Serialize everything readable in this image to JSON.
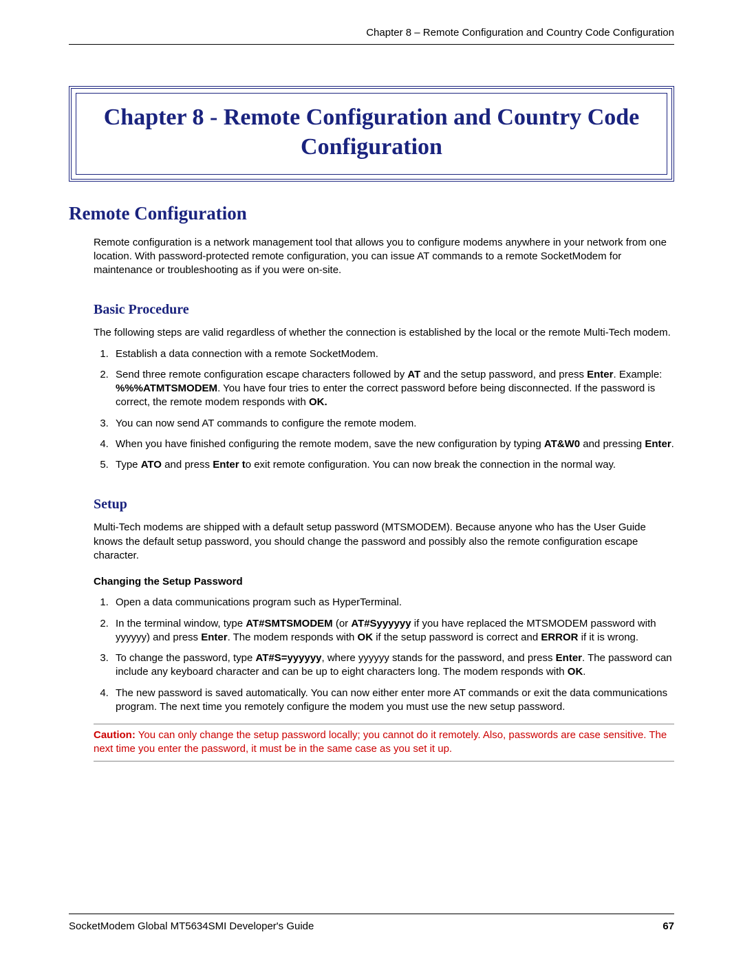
{
  "colors": {
    "heading_blue": "#1a237e",
    "caution_red": "#cc0000",
    "text_black": "#000000",
    "rule_gray": "#888888",
    "background": "#ffffff"
  },
  "typography": {
    "heading_font": "Georgia, 'Times New Roman', serif",
    "body_font": "Arial, Helvetica, sans-serif",
    "chapter_title_size_pt": 34,
    "h2_size_pt": 27,
    "h3_size_pt": 20,
    "body_size_pt": 15
  },
  "header": {
    "running_title": "Chapter 8 – Remote Configuration and Country Code Configuration"
  },
  "chapter": {
    "title": "Chapter 8 - Remote Configuration and Country Code Configuration"
  },
  "section1": {
    "title": "Remote Configuration",
    "intro": "Remote configuration is a network management tool that allows you to configure modems anywhere in your network from one location. With password-protected remote configuration, you can issue AT commands to a remote SocketModem for maintenance or troubleshooting as if you were on-site."
  },
  "basic_procedure": {
    "title": "Basic Procedure",
    "intro": "The following steps are valid regardless of whether the connection is established by the local or the remote Multi-Tech modem.",
    "steps": {
      "s1": "Establish a data connection with a remote SocketModem.",
      "s2_a": "Send three remote configuration escape characters followed by ",
      "s2_AT": "AT",
      "s2_b": " and the setup password, and press ",
      "s2_Enter": "Enter",
      "s2_c": ". Example: ",
      "s2_example": "%%%ATMTSMODEM",
      "s2_d": ". You have four tries to enter the correct password before being disconnected. If the password is correct, the remote modem responds with ",
      "s2_OK": "OK.",
      "s3": "You can now send AT commands to configure the remote modem.",
      "s4_a": "When you have finished configuring the remote modem, save the new configuration by typing ",
      "s4_cmd": "AT&W0",
      "s4_b": " and pressing ",
      "s4_Enter": "Enter",
      "s4_c": ".",
      "s5_a": "Type ",
      "s5_ATO": "ATO",
      "s5_b": " and press ",
      "s5_Enter": "Enter t",
      "s5_c": "o exit remote configuration. You can now break the connection in the normal way."
    }
  },
  "setup": {
    "title": "Setup",
    "intro": "Multi-Tech modems are shipped with a default setup password (MTSMODEM). Because anyone who has the User Guide knows the default setup password, you should change the password and possibly also the remote configuration escape character.",
    "change_pw_heading": "Changing the Setup Password",
    "steps": {
      "p1": "Open a data communications program such as HyperTerminal.",
      "p2_a": "In the terminal window, type ",
      "p2_cmd1": "AT#SMTSMODEM",
      "p2_b": " (or ",
      "p2_cmd2": "AT#Syyyyyy",
      "p2_c": " if you have replaced the MTSMODEM password with yyyyyy) and press ",
      "p2_Enter": "Enter",
      "p2_d": ". The modem responds with ",
      "p2_OK": "OK",
      "p2_e": " if the setup password is correct and ",
      "p2_ERROR": "ERROR",
      "p2_f": " if it is wrong.",
      "p3_a": "To change the password, type ",
      "p3_cmd": "AT#S=yyyyyy",
      "p3_b": ", where yyyyyy stands for the password, and press ",
      "p3_Enter": "Enter",
      "p3_c": ". The password can include any keyboard character and can be up to eight characters long. The modem responds with ",
      "p3_OK": "OK",
      "p3_d": ".",
      "p4": "The new password is saved automatically. You can now either enter more AT commands or exit the data communications program. The next time you remotely configure the modem you must use the new setup password."
    },
    "caution_label": "Caution:",
    "caution_text": " You can only change the setup password locally; you cannot do it remotely. Also, passwords are case sensitive. The next time you enter the password, it must be in the same case as you set it up."
  },
  "footer": {
    "guide_title": "SocketModem Global MT5634SMI Developer's Guide",
    "page_number": "67"
  }
}
